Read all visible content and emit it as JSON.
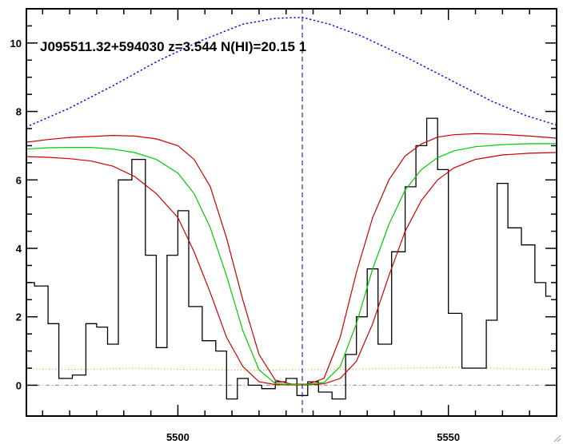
{
  "chart_data": {
    "type": "line",
    "annotation": "J095511.32+594030 z=3.544 N(HI)=20.15 1",
    "xlim": [
      5472,
      5570
    ],
    "ylim": [
      -0.9,
      11
    ],
    "x_ticks": [
      5500,
      5550
    ],
    "y_ticks": [
      0,
      2,
      4,
      6,
      8,
      10
    ],
    "vertical_marker_x": 5523,
    "grid": false,
    "colors": {
      "spectrum": "#000000",
      "fit": "#00cc00",
      "bounds": "#cc0000",
      "continuum": "#0000ff",
      "error": "#ff8800",
      "zero_line": "#888888",
      "marker": "#0000cc"
    },
    "spectrum": {
      "x": [
        5472,
        5475,
        5477,
        5479,
        5482,
        5484,
        5486,
        5488,
        5490,
        5493,
        5495,
        5497,
        5499,
        5501,
        5503,
        5506,
        5508,
        5510,
        5512,
        5514,
        5517,
        5519,
        5521,
        5523,
        5525,
        5527,
        5530,
        5532,
        5534,
        5536,
        5538,
        5541,
        5543,
        5545,
        5547,
        5549,
        5551,
        5554,
        5556,
        5558,
        5560,
        5562,
        5565,
        5567,
        5569
      ],
      "y": [
        3.0,
        2.9,
        1.8,
        0.2,
        0.3,
        1.8,
        1.7,
        1.2,
        6.0,
        6.6,
        3.8,
        1.1,
        3.8,
        5.1,
        2.3,
        1.3,
        1.0,
        -0.4,
        0.2,
        0.0,
        -0.1,
        0.1,
        0.2,
        -0.3,
        0.1,
        -0.2,
        -0.4,
        0.9,
        2.0,
        3.4,
        1.2,
        3.9,
        5.8,
        7.0,
        7.8,
        6.3,
        2.1,
        0.5,
        0.5,
        1.9,
        5.9,
        4.6,
        4.1,
        3.0,
        2.6
      ]
    },
    "fit": {
      "x": [
        5472,
        5476,
        5480,
        5484,
        5488,
        5492,
        5496,
        5500,
        5503,
        5506,
        5509,
        5512,
        5515,
        5518,
        5521,
        5524,
        5527,
        5530,
        5533,
        5536,
        5539,
        5542,
        5545,
        5548,
        5551,
        5555,
        5560,
        5565,
        5570
      ],
      "y": [
        6.9,
        6.94,
        6.95,
        6.95,
        6.9,
        6.8,
        6.6,
        6.2,
        5.6,
        4.6,
        3.2,
        1.6,
        0.45,
        0.05,
        0.02,
        0.02,
        0.08,
        0.55,
        1.8,
        3.4,
        4.7,
        5.7,
        6.3,
        6.65,
        6.85,
        6.97,
        7.03,
        7.06,
        7.06
      ]
    },
    "upper_bound": {
      "x": [
        5472,
        5476,
        5480,
        5484,
        5488,
        5492,
        5496,
        5500,
        5503,
        5506,
        5509,
        5512,
        5515,
        5518,
        5521,
        5524,
        5527,
        5530,
        5533,
        5536,
        5539,
        5542,
        5545,
        5548,
        5551,
        5555,
        5560,
        5565,
        5570
      ],
      "y": [
        7.1,
        7.18,
        7.24,
        7.27,
        7.3,
        7.28,
        7.2,
        7.0,
        6.6,
        5.8,
        4.3,
        2.5,
        0.9,
        0.15,
        0.03,
        0.03,
        0.2,
        1.4,
        3.3,
        4.9,
        6.0,
        6.7,
        7.05,
        7.25,
        7.32,
        7.35,
        7.33,
        7.28,
        7.22
      ]
    },
    "lower_bound": {
      "x": [
        5472,
        5476,
        5480,
        5484,
        5488,
        5492,
        5496,
        5500,
        5503,
        5506,
        5509,
        5512,
        5515,
        5518,
        5521,
        5524,
        5527,
        5530,
        5533,
        5536,
        5539,
        5542,
        5545,
        5548,
        5551,
        5555,
        5560,
        5565,
        5570
      ],
      "y": [
        6.68,
        6.66,
        6.62,
        6.55,
        6.4,
        6.1,
        5.6,
        4.9,
        3.9,
        2.7,
        1.4,
        0.55,
        0.1,
        0.02,
        0.01,
        0.01,
        0.04,
        0.2,
        0.7,
        1.8,
        3.2,
        4.5,
        5.4,
        6.0,
        6.35,
        6.6,
        6.73,
        6.78,
        6.8
      ]
    },
    "continuum": {
      "x": [
        5472,
        5480,
        5488,
        5496,
        5504,
        5512,
        5518,
        5523,
        5528,
        5534,
        5542,
        5550,
        5558,
        5564,
        5570
      ],
      "y": [
        7.55,
        8.1,
        8.75,
        9.45,
        10.05,
        10.55,
        10.72,
        10.75,
        10.55,
        10.2,
        9.6,
        8.95,
        8.3,
        7.9,
        7.6
      ]
    },
    "error": {
      "x": [
        5472,
        5482,
        5492,
        5502,
        5512,
        5522,
        5532,
        5542,
        5552,
        5562,
        5570
      ],
      "y": [
        0.48,
        0.46,
        0.5,
        0.46,
        0.44,
        0.45,
        0.47,
        0.5,
        0.52,
        0.48,
        0.45
      ]
    }
  }
}
